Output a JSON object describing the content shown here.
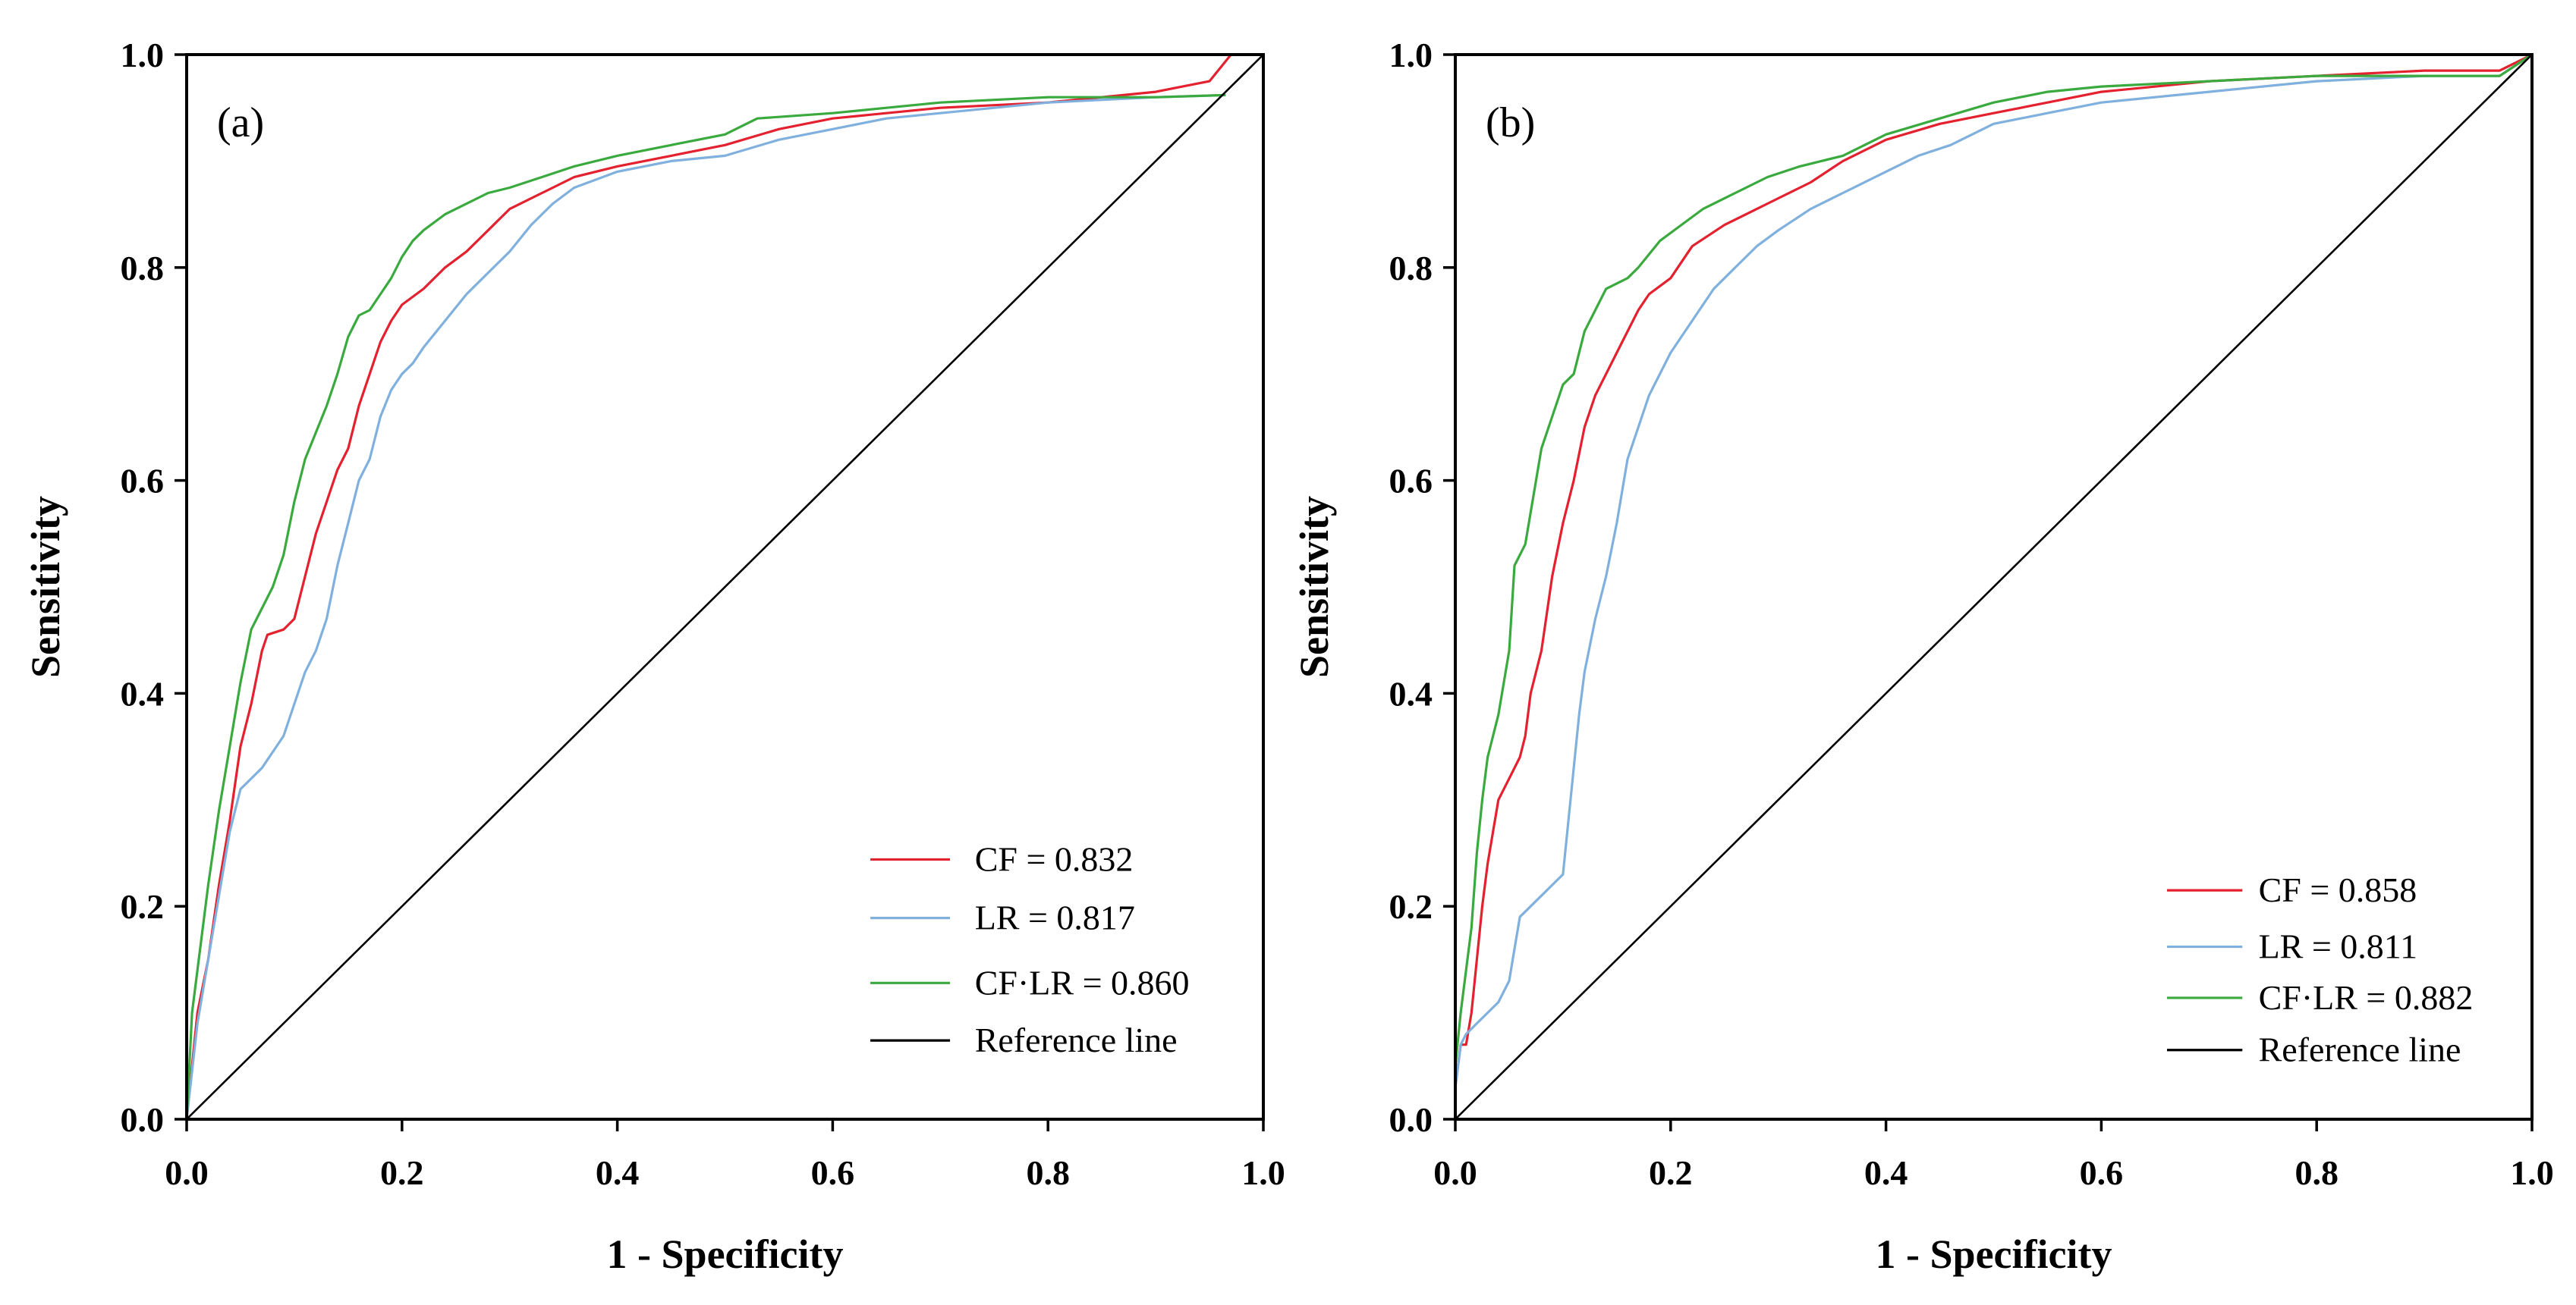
{
  "chart_data": [
    {
      "type": "line",
      "panel_label": "(a)",
      "xlabel": "1 - Specificity",
      "ylabel": "Sensitivity",
      "xlim": [
        0,
        1
      ],
      "ylim": [
        0,
        1
      ],
      "xticks": [
        0,
        0.2,
        0.4,
        0.6,
        0.8,
        1.0
      ],
      "xtick_labels": [
        "0.0",
        "0.2",
        "0.4",
        "0.6",
        "0.8",
        "1.0"
      ],
      "yticks": [
        0,
        0.2,
        0.4,
        0.6,
        0.8,
        1.0
      ],
      "ytick_labels": [
        "0.0",
        "0.2",
        "0.4",
        "0.6",
        "0.8",
        "1.0"
      ],
      "grid": false,
      "legend": {
        "placement": "bottom-right"
      },
      "series": [
        {
          "label": "CF = 0.832",
          "color": "#e3212f",
          "points": [
            [
              0,
              0
            ],
            [
              0.01,
              0.1
            ],
            [
              0.02,
              0.15
            ],
            [
              0.03,
              0.22
            ],
            [
              0.04,
              0.28
            ],
            [
              0.05,
              0.35
            ],
            [
              0.06,
              0.39
            ],
            [
              0.07,
              0.44
            ],
            [
              0.075,
              0.455
            ],
            [
              0.09,
              0.46
            ],
            [
              0.1,
              0.47
            ],
            [
              0.11,
              0.51
            ],
            [
              0.12,
              0.55
            ],
            [
              0.13,
              0.58
            ],
            [
              0.14,
              0.61
            ],
            [
              0.15,
              0.63
            ],
            [
              0.16,
              0.67
            ],
            [
              0.17,
              0.7
            ],
            [
              0.18,
              0.73
            ],
            [
              0.19,
              0.75
            ],
            [
              0.2,
              0.765
            ],
            [
              0.22,
              0.78
            ],
            [
              0.24,
              0.8
            ],
            [
              0.26,
              0.815
            ],
            [
              0.28,
              0.835
            ],
            [
              0.3,
              0.855
            ],
            [
              0.33,
              0.87
            ],
            [
              0.36,
              0.885
            ],
            [
              0.4,
              0.895
            ],
            [
              0.45,
              0.905
            ],
            [
              0.5,
              0.915
            ],
            [
              0.55,
              0.93
            ],
            [
              0.6,
              0.94
            ],
            [
              0.65,
              0.945
            ],
            [
              0.7,
              0.95
            ],
            [
              0.8,
              0.955
            ],
            [
              0.9,
              0.965
            ],
            [
              0.95,
              0.975
            ],
            [
              0.97,
              1.0
            ],
            [
              1.0,
              1.0
            ]
          ]
        },
        {
          "label": "LR = 0.817",
          "color": "#7fb0de",
          "points": [
            [
              0,
              0
            ],
            [
              0.01,
              0.09
            ],
            [
              0.02,
              0.15
            ],
            [
              0.03,
              0.21
            ],
            [
              0.04,
              0.27
            ],
            [
              0.05,
              0.31
            ],
            [
              0.06,
              0.32
            ],
            [
              0.07,
              0.33
            ],
            [
              0.08,
              0.345
            ],
            [
              0.09,
              0.36
            ],
            [
              0.1,
              0.39
            ],
            [
              0.11,
              0.42
            ],
            [
              0.12,
              0.44
            ],
            [
              0.13,
              0.47
            ],
            [
              0.14,
              0.52
            ],
            [
              0.15,
              0.56
            ],
            [
              0.16,
              0.6
            ],
            [
              0.17,
              0.62
            ],
            [
              0.18,
              0.66
            ],
            [
              0.19,
              0.685
            ],
            [
              0.2,
              0.7
            ],
            [
              0.21,
              0.71
            ],
            [
              0.22,
              0.725
            ],
            [
              0.24,
              0.75
            ],
            [
              0.26,
              0.775
            ],
            [
              0.28,
              0.795
            ],
            [
              0.3,
              0.815
            ],
            [
              0.32,
              0.84
            ],
            [
              0.34,
              0.86
            ],
            [
              0.36,
              0.875
            ],
            [
              0.4,
              0.89
            ],
            [
              0.45,
              0.9
            ],
            [
              0.5,
              0.905
            ],
            [
              0.55,
              0.92
            ],
            [
              0.6,
              0.93
            ],
            [
              0.65,
              0.94
            ],
            [
              0.7,
              0.945
            ],
            [
              0.8,
              0.955
            ],
            [
              0.9,
              0.96
            ],
            [
              0.965,
              0.962
            ]
          ]
        },
        {
          "label": "CF·LR = 0.860",
          "color": "#3aaa3e",
          "points": [
            [
              0,
              0
            ],
            [
              0.005,
              0.1
            ],
            [
              0.01,
              0.14
            ],
            [
              0.02,
              0.22
            ],
            [
              0.03,
              0.29
            ],
            [
              0.04,
              0.35
            ],
            [
              0.05,
              0.41
            ],
            [
              0.06,
              0.46
            ],
            [
              0.07,
              0.48
            ],
            [
              0.08,
              0.5
            ],
            [
              0.09,
              0.53
            ],
            [
              0.1,
              0.58
            ],
            [
              0.11,
              0.62
            ],
            [
              0.12,
              0.645
            ],
            [
              0.13,
              0.67
            ],
            [
              0.14,
              0.7
            ],
            [
              0.15,
              0.735
            ],
            [
              0.16,
              0.755
            ],
            [
              0.17,
              0.76
            ],
            [
              0.18,
              0.775
            ],
            [
              0.19,
              0.79
            ],
            [
              0.2,
              0.81
            ],
            [
              0.21,
              0.825
            ],
            [
              0.22,
              0.835
            ],
            [
              0.24,
              0.85
            ],
            [
              0.26,
              0.86
            ],
            [
              0.28,
              0.87
            ],
            [
              0.3,
              0.875
            ],
            [
              0.33,
              0.885
            ],
            [
              0.36,
              0.895
            ],
            [
              0.4,
              0.905
            ],
            [
              0.45,
              0.915
            ],
            [
              0.5,
              0.925
            ],
            [
              0.53,
              0.94
            ],
            [
              0.6,
              0.945
            ],
            [
              0.65,
              0.95
            ],
            [
              0.7,
              0.955
            ],
            [
              0.8,
              0.96
            ],
            [
              0.9,
              0.96
            ],
            [
              0.965,
              0.962
            ]
          ]
        },
        {
          "label": "Reference line",
          "color": "#000000",
          "points": [
            [
              0,
              0
            ],
            [
              1,
              1
            ]
          ]
        }
      ]
    },
    {
      "type": "line",
      "panel_label": "(b)",
      "xlabel": "1 - Specificity",
      "ylabel": "Sensitivity",
      "xlim": [
        0,
        1
      ],
      "ylim": [
        0,
        1
      ],
      "xticks": [
        0,
        0.2,
        0.4,
        0.6,
        0.8,
        1.0
      ],
      "xtick_labels": [
        "0.0",
        "0.2",
        "0.4",
        "0.6",
        "0.8",
        "1.0"
      ],
      "yticks": [
        0,
        0.2,
        0.4,
        0.6,
        0.8,
        1.0
      ],
      "ytick_labels": [
        "0.0",
        "0.2",
        "0.4",
        "0.6",
        "0.8",
        "1.0"
      ],
      "grid": false,
      "legend": {
        "placement": "bottom-right"
      },
      "series": [
        {
          "label": "CF = 0.858",
          "color": "#e3212f",
          "points": [
            [
              0,
              0.03
            ],
            [
              0.005,
              0.07
            ],
            [
              0.01,
              0.07
            ],
            [
              0.015,
              0.1
            ],
            [
              0.02,
              0.15
            ],
            [
              0.025,
              0.2
            ],
            [
              0.03,
              0.24
            ],
            [
              0.035,
              0.27
            ],
            [
              0.04,
              0.3
            ],
            [
              0.05,
              0.32
            ],
            [
              0.06,
              0.34
            ],
            [
              0.065,
              0.36
            ],
            [
              0.07,
              0.4
            ],
            [
              0.08,
              0.44
            ],
            [
              0.09,
              0.51
            ],
            [
              0.1,
              0.56
            ],
            [
              0.11,
              0.6
            ],
            [
              0.12,
              0.65
            ],
            [
              0.13,
              0.68
            ],
            [
              0.14,
              0.7
            ],
            [
              0.15,
              0.72
            ],
            [
              0.16,
              0.74
            ],
            [
              0.17,
              0.76
            ],
            [
              0.18,
              0.775
            ],
            [
              0.2,
              0.79
            ],
            [
              0.22,
              0.82
            ],
            [
              0.25,
              0.84
            ],
            [
              0.28,
              0.855
            ],
            [
              0.3,
              0.865
            ],
            [
              0.33,
              0.88
            ],
            [
              0.36,
              0.9
            ],
            [
              0.4,
              0.92
            ],
            [
              0.45,
              0.935
            ],
            [
              0.5,
              0.945
            ],
            [
              0.55,
              0.955
            ],
            [
              0.6,
              0.965
            ],
            [
              0.7,
              0.975
            ],
            [
              0.8,
              0.98
            ],
            [
              0.9,
              0.985
            ],
            [
              0.97,
              0.985
            ],
            [
              1.0,
              1.0
            ]
          ]
        },
        {
          "label": "LR = 0.811",
          "color": "#7fb0de",
          "points": [
            [
              0,
              0.03
            ],
            [
              0.005,
              0.07
            ],
            [
              0.01,
              0.08
            ],
            [
              0.02,
              0.09
            ],
            [
              0.03,
              0.1
            ],
            [
              0.04,
              0.11
            ],
            [
              0.05,
              0.13
            ],
            [
              0.055,
              0.16
            ],
            [
              0.06,
              0.19
            ],
            [
              0.07,
              0.2
            ],
            [
              0.08,
              0.21
            ],
            [
              0.09,
              0.22
            ],
            [
              0.1,
              0.23
            ],
            [
              0.105,
              0.28
            ],
            [
              0.11,
              0.33
            ],
            [
              0.115,
              0.38
            ],
            [
              0.12,
              0.42
            ],
            [
              0.13,
              0.47
            ],
            [
              0.14,
              0.51
            ],
            [
              0.15,
              0.56
            ],
            [
              0.16,
              0.62
            ],
            [
              0.17,
              0.65
            ],
            [
              0.18,
              0.68
            ],
            [
              0.19,
              0.7
            ],
            [
              0.2,
              0.72
            ],
            [
              0.22,
              0.75
            ],
            [
              0.24,
              0.78
            ],
            [
              0.26,
              0.8
            ],
            [
              0.28,
              0.82
            ],
            [
              0.3,
              0.835
            ],
            [
              0.33,
              0.855
            ],
            [
              0.36,
              0.87
            ],
            [
              0.4,
              0.89
            ],
            [
              0.43,
              0.905
            ],
            [
              0.46,
              0.915
            ],
            [
              0.5,
              0.935
            ],
            [
              0.55,
              0.945
            ],
            [
              0.6,
              0.955
            ],
            [
              0.7,
              0.965
            ],
            [
              0.8,
              0.975
            ],
            [
              0.9,
              0.98
            ],
            [
              0.97,
              0.98
            ],
            [
              1.0,
              1.0
            ]
          ]
        },
        {
          "label": "CF·LR = 0.882",
          "color": "#3aaa3e",
          "points": [
            [
              0,
              0.05
            ],
            [
              0.005,
              0.1
            ],
            [
              0.01,
              0.14
            ],
            [
              0.015,
              0.18
            ],
            [
              0.02,
              0.25
            ],
            [
              0.025,
              0.3
            ],
            [
              0.03,
              0.34
            ],
            [
              0.04,
              0.38
            ],
            [
              0.05,
              0.44
            ],
            [
              0.055,
              0.52
            ],
            [
              0.065,
              0.54
            ],
            [
              0.07,
              0.57
            ],
            [
              0.08,
              0.63
            ],
            [
              0.09,
              0.66
            ],
            [
              0.1,
              0.69
            ],
            [
              0.11,
              0.7
            ],
            [
              0.12,
              0.74
            ],
            [
              0.13,
              0.76
            ],
            [
              0.14,
              0.78
            ],
            [
              0.16,
              0.79
            ],
            [
              0.17,
              0.8
            ],
            [
              0.19,
              0.825
            ],
            [
              0.21,
              0.84
            ],
            [
              0.23,
              0.855
            ],
            [
              0.26,
              0.87
            ],
            [
              0.29,
              0.885
            ],
            [
              0.32,
              0.895
            ],
            [
              0.36,
              0.905
            ],
            [
              0.4,
              0.925
            ],
            [
              0.45,
              0.94
            ],
            [
              0.5,
              0.955
            ],
            [
              0.55,
              0.965
            ],
            [
              0.6,
              0.97
            ],
            [
              0.7,
              0.975
            ],
            [
              0.8,
              0.98
            ],
            [
              0.9,
              0.98
            ],
            [
              0.97,
              0.98
            ],
            [
              1.0,
              1.0
            ]
          ]
        },
        {
          "label": "Reference line",
          "color": "#000000",
          "points": [
            [
              0,
              0
            ],
            [
              1,
              1
            ]
          ]
        }
      ]
    }
  ]
}
